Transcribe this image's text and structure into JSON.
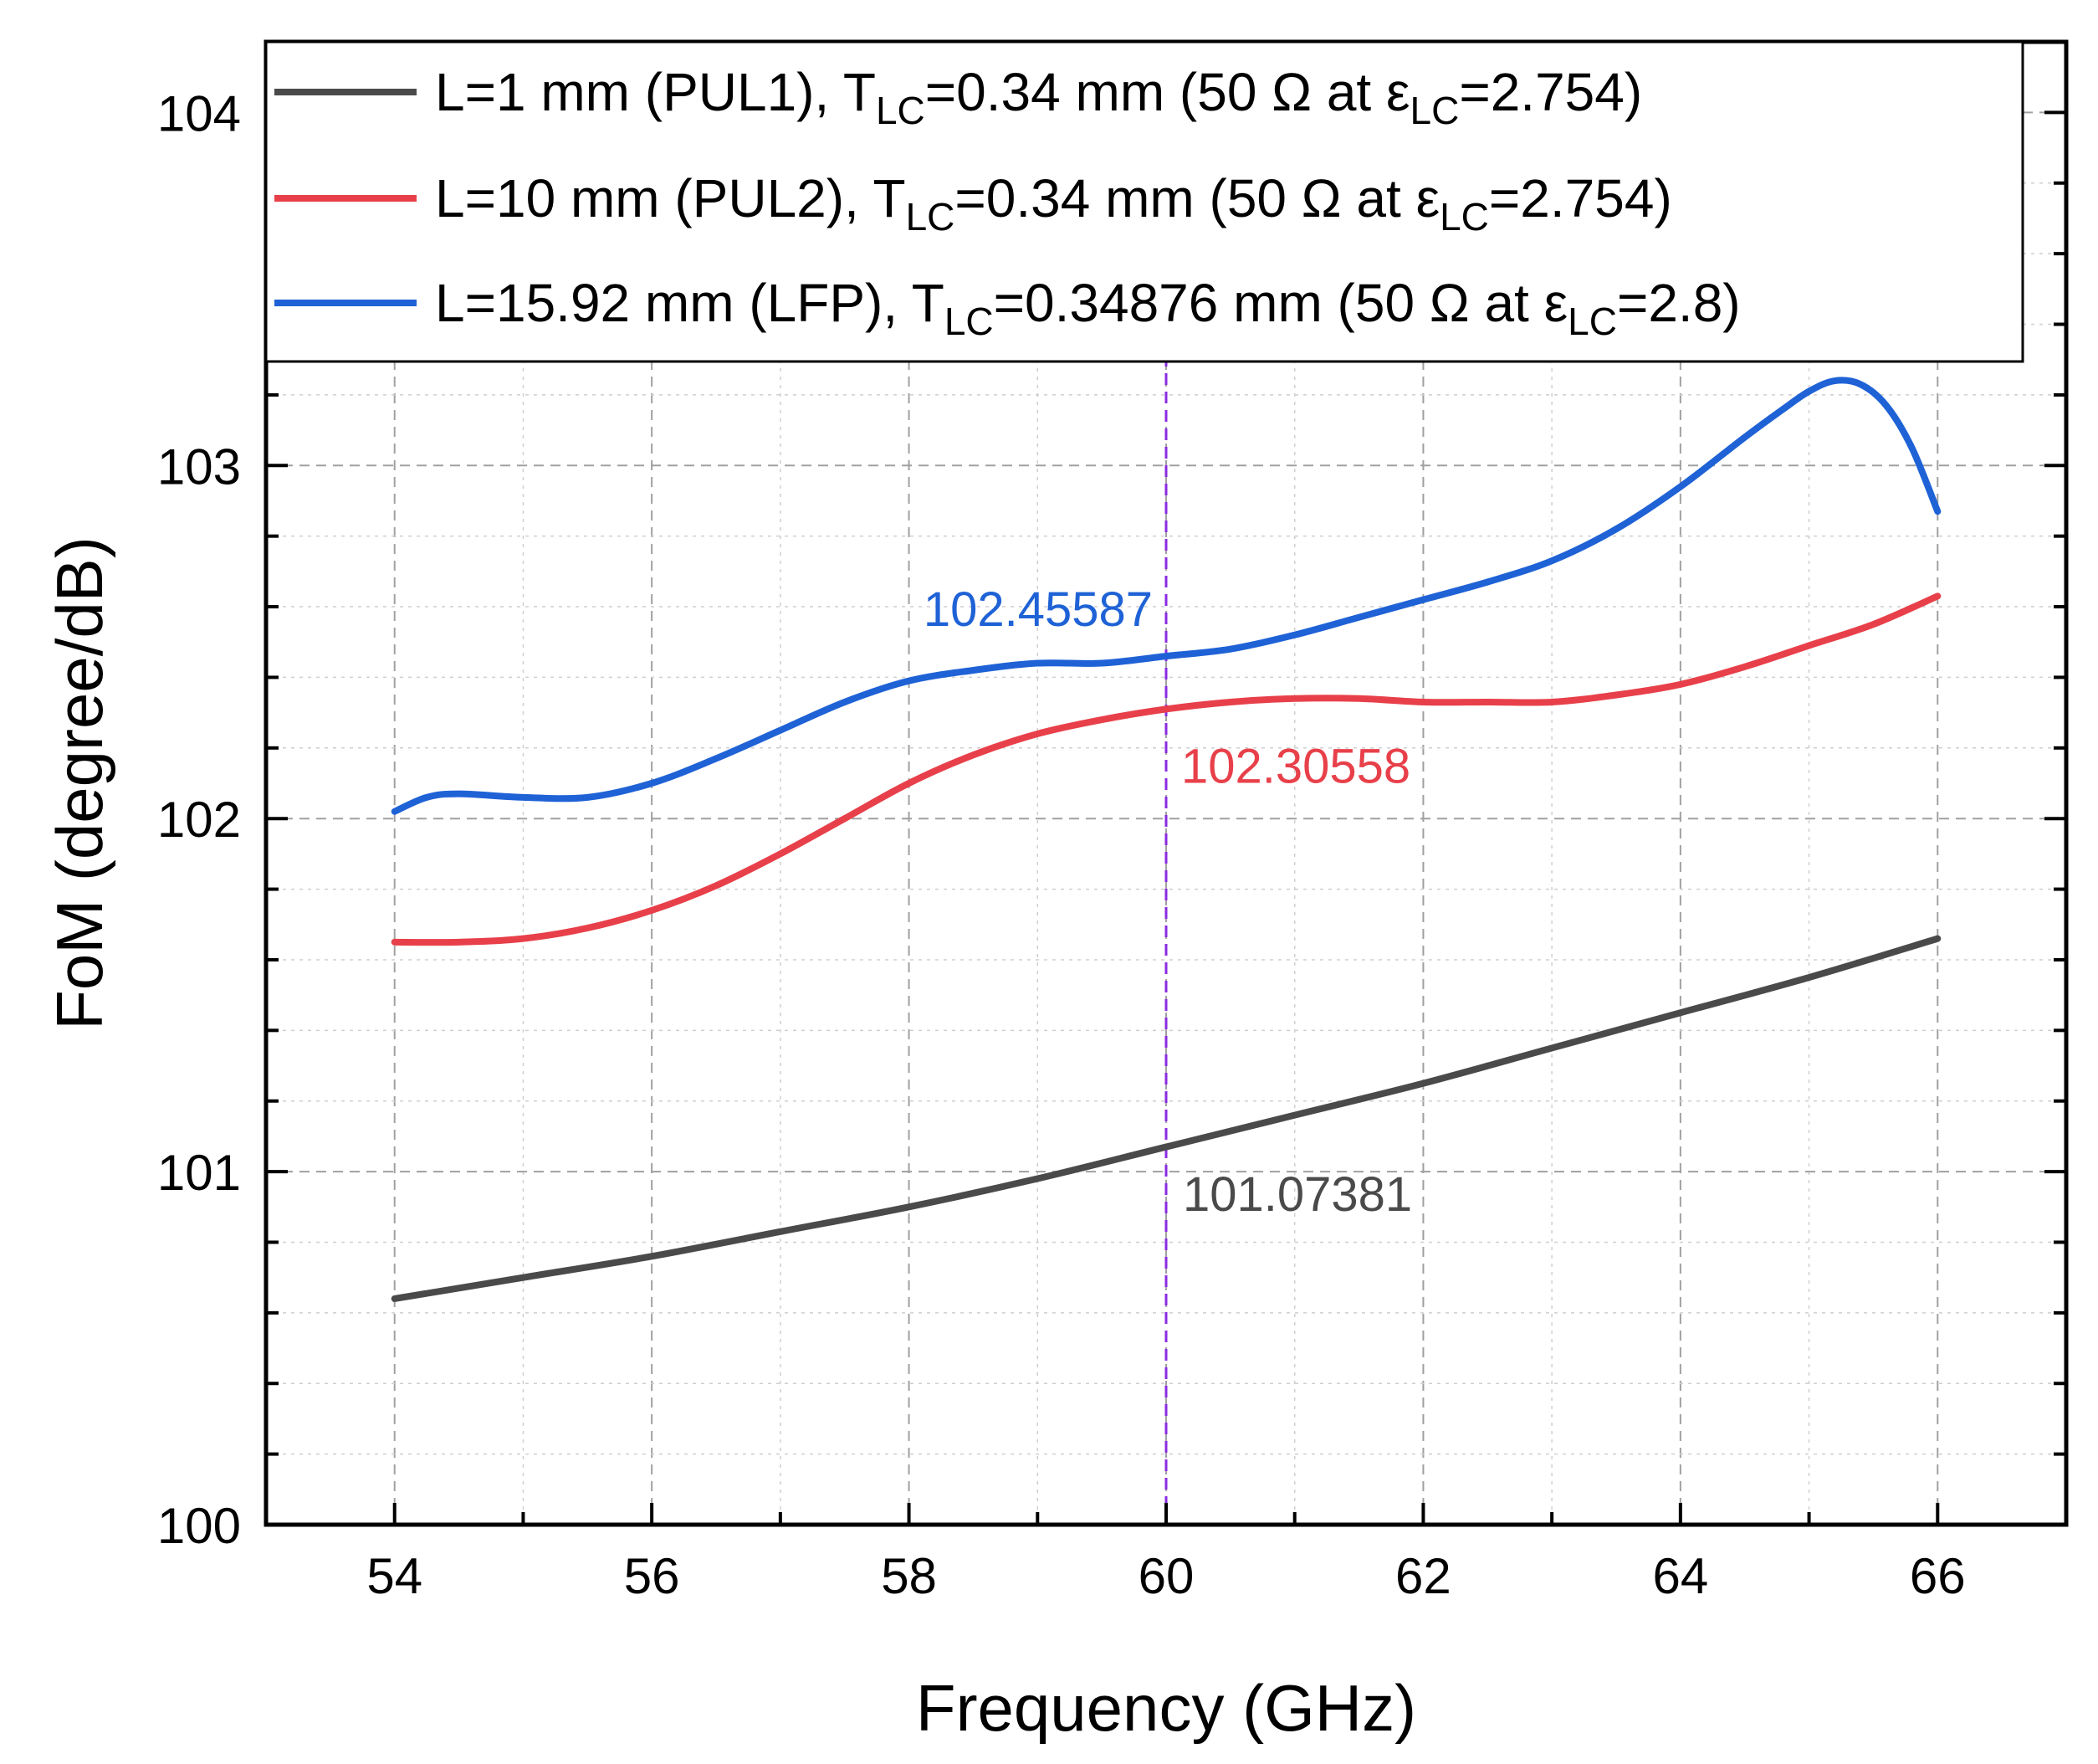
{
  "chart_data": {
    "type": "line",
    "xlabel": "Frequency (GHz)",
    "ylabel": "FoM (degree/dB)",
    "xlim": [
      53,
      67
    ],
    "ylim": [
      100,
      104.2
    ],
    "xticks": [
      54,
      56,
      58,
      60,
      62,
      64,
      66
    ],
    "yticks": [
      100,
      101,
      102,
      103,
      104
    ],
    "grid": true,
    "vline": {
      "x": 60,
      "color": "#8a2be2"
    },
    "series": [
      {
        "name": "L=1 mm (PUL1), T_LC=0.34 mm (50 Ω at ε_LC=2.754)",
        "color": "#4a4a4a",
        "x": [
          54,
          55,
          56,
          57,
          58,
          59,
          60,
          61,
          62,
          63,
          64,
          65,
          66
        ],
        "y": [
          100.64,
          100.7,
          100.76,
          100.83,
          100.9,
          100.98,
          101.07,
          101.16,
          101.25,
          101.35,
          101.45,
          101.55,
          101.66
        ]
      },
      {
        "name": "L=10 mm (PUL2), T_LC=0.34 mm (50 Ω at ε_LC=2.754)",
        "color": "#e8404a",
        "x": [
          54,
          54.5,
          55,
          55.5,
          56,
          56.5,
          57,
          57.5,
          58,
          58.5,
          59,
          59.5,
          60,
          60.5,
          61,
          61.5,
          62,
          62.5,
          63,
          63.5,
          64,
          64.5,
          65,
          65.5,
          66
        ],
        "y": [
          101.65,
          101.65,
          101.66,
          101.69,
          101.74,
          101.81,
          101.9,
          102.0,
          102.1,
          102.18,
          102.24,
          102.28,
          102.31,
          102.33,
          102.34,
          102.34,
          102.33,
          102.33,
          102.33,
          102.35,
          102.38,
          102.43,
          102.49,
          102.55,
          102.63
        ]
      },
      {
        "name": "L=15.92 mm (LFP), T_LC=0.34876 mm (50 Ω at ε_LC=2.8)",
        "color": "#1f62d6",
        "x": [
          54,
          54.25,
          54.5,
          55,
          55.5,
          56,
          56.5,
          57,
          57.5,
          58,
          58.5,
          59,
          59.5,
          60,
          60.5,
          61,
          61.5,
          62,
          62.5,
          63,
          63.5,
          64,
          64.5,
          64.8,
          65,
          65.2,
          65.4,
          65.6,
          65.8,
          66
        ],
        "y": [
          102.02,
          102.06,
          102.07,
          102.06,
          102.06,
          102.1,
          102.17,
          102.25,
          102.33,
          102.39,
          102.42,
          102.44,
          102.44,
          102.46,
          102.48,
          102.52,
          102.57,
          102.62,
          102.67,
          102.73,
          102.82,
          102.94,
          103.08,
          103.16,
          103.21,
          103.24,
          103.23,
          103.17,
          103.05,
          102.87
        ]
      }
    ],
    "annotations": [
      {
        "text": "102.45587",
        "series": 2,
        "x": 60,
        "y": 102.45587
      },
      {
        "text": "102.30558",
        "series": 1,
        "x": 60,
        "y": 102.30558
      },
      {
        "text": "101.07381",
        "series": 0,
        "x": 60,
        "y": 101.07381
      }
    ],
    "legend": {
      "position": "top-left",
      "entries": [
        {
          "pre": "L=1 mm (PUL1), T",
          "sub1": "LC",
          "mid": "=0.34 mm (50 Ω at ε",
          "sub2": "LC",
          "post": "=2.754)"
        },
        {
          "pre": "L=10 mm (PUL2), T",
          "sub1": "LC",
          "mid": "=0.34 mm (50 Ω at ε",
          "sub2": "LC",
          "post": "=2.754)"
        },
        {
          "pre": "L=15.92 mm (LFP), T",
          "sub1": "LC",
          "mid": "=0.34876 mm (50 Ω at ε",
          "sub2": "LC",
          "post": "=2.8)"
        }
      ]
    }
  }
}
